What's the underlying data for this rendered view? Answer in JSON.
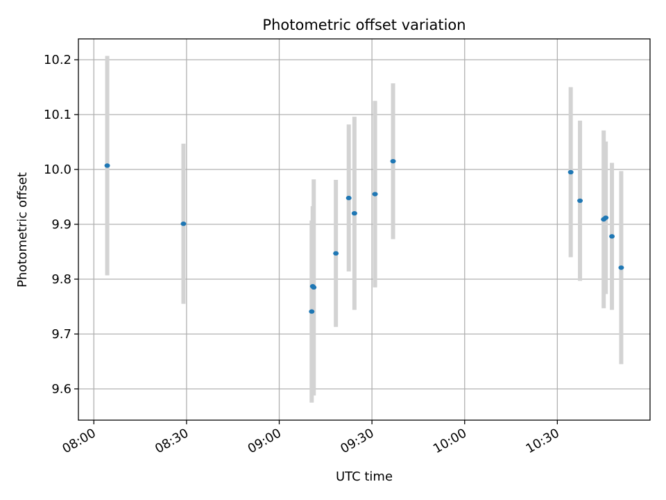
{
  "chart_data": {
    "type": "scatter",
    "title": "Photometric offset variation",
    "xlabel": "UTC time",
    "ylabel": "Photometric offset",
    "x_ticks": [
      "08:00",
      "08:30",
      "09:00",
      "09:30",
      "10:00",
      "10:30"
    ],
    "y_ticks": [
      "9.6",
      "9.7",
      "9.8",
      "9.9",
      "10.0",
      "10.1",
      "10.2"
    ],
    "xlim": [
      "07:55",
      "11:00"
    ],
    "ylim": [
      9.543,
      10.238
    ],
    "grid": true,
    "marker_color": "#1f77b4",
    "errorbar_color": "#d3d3d3",
    "points": [
      {
        "x": "08:04:20",
        "y": 10.007,
        "yerr": 0.2
      },
      {
        "x": "08:29:00",
        "y": 9.901,
        "yerr": 0.146
      },
      {
        "x": "09:10:30",
        "y": 9.741,
        "yerr": 0.166
      },
      {
        "x": "09:10:50",
        "y": 9.787,
        "yerr": 0.146
      },
      {
        "x": "09:11:10",
        "y": 9.785,
        "yerr": 0.197
      },
      {
        "x": "09:18:20",
        "y": 9.847,
        "yerr": 0.134
      },
      {
        "x": "09:22:30",
        "y": 9.948,
        "yerr": 0.134
      },
      {
        "x": "09:24:20",
        "y": 9.92,
        "yerr": 0.176
      },
      {
        "x": "09:31:00",
        "y": 9.955,
        "yerr": 0.17
      },
      {
        "x": "09:36:50",
        "y": 10.015,
        "yerr": 0.142
      },
      {
        "x": "10:34:20",
        "y": 9.995,
        "yerr": 0.155
      },
      {
        "x": "10:37:20",
        "y": 9.943,
        "yerr": 0.146
      },
      {
        "x": "10:45:00",
        "y": 9.909,
        "yerr": 0.162
      },
      {
        "x": "10:45:40",
        "y": 9.912,
        "yerr": 0.139
      },
      {
        "x": "10:47:40",
        "y": 9.878,
        "yerr": 0.134
      },
      {
        "x": "10:50:40",
        "y": 9.821,
        "yerr": 0.176
      }
    ]
  }
}
